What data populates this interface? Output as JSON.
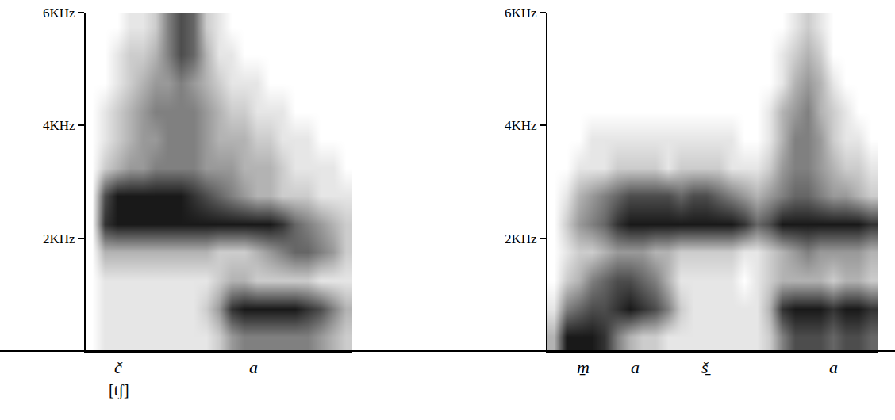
{
  "chart_data": [
    {
      "type": "heatmap",
      "color": "#000000",
      "tick_labels": "y",
      "ylim": [
        0,
        6
      ],
      "yticks": [
        {
          "value": 2,
          "label": "2KHz"
        },
        {
          "value": 4,
          "label": "4KHz"
        },
        {
          "value": 6,
          "label": "6KHz"
        }
      ],
      "xlim": [
        0,
        21
      ],
      "zlim": [
        0,
        1
      ],
      "x": [
        0.5,
        1.5,
        2.5,
        3.5,
        4.5,
        5.5,
        6.5,
        7.5,
        8.5,
        9.5,
        10.5,
        11.5,
        12.5,
        13.5,
        14.5,
        15.5,
        16.5,
        17.5,
        18.5,
        19.5,
        20.5
      ],
      "y": [
        0.25,
        0.75,
        1.25,
        1.75,
        2.25,
        2.75,
        3.25,
        3.75,
        4.25,
        4.75,
        5.25,
        5.75
      ],
      "z": [
        [
          0,
          0.1,
          0.1,
          0.1,
          0.1,
          0.1,
          0.1,
          0.1,
          0.1,
          0.1,
          0.2,
          0.4,
          0.5,
          0.5,
          0.5,
          0.5,
          0.5,
          0.5,
          0.4,
          0.3,
          0.2
        ],
        [
          0,
          0.1,
          0.1,
          0.1,
          0.1,
          0.1,
          0.1,
          0.1,
          0.1,
          0.2,
          0.4,
          0.8,
          0.9,
          0.9,
          0.9,
          0.9,
          0.9,
          0.8,
          0.7,
          0.5,
          0.3
        ],
        [
          0,
          0.1,
          0.1,
          0.1,
          0.1,
          0.1,
          0.1,
          0.1,
          0.1,
          0.1,
          0.2,
          0.3,
          0.3,
          0.2,
          0.2,
          0.2,
          0.2,
          0.2,
          0.1,
          0.1,
          0.1
        ],
        [
          0,
          0.3,
          0.3,
          0.3,
          0.3,
          0.3,
          0.3,
          0.3,
          0.3,
          0.3,
          0.2,
          0.2,
          0.2,
          0.3,
          0.4,
          0.5,
          0.6,
          0.6,
          0.5,
          0.4,
          0.2
        ],
        [
          0,
          0.8,
          0.9,
          0.9,
          0.9,
          0.9,
          0.9,
          0.9,
          0.9,
          0.9,
          0.9,
          0.9,
          0.9,
          0.9,
          0.9,
          0.8,
          0.6,
          0.5,
          0.4,
          0.3,
          0.2
        ],
        [
          0,
          0.7,
          0.9,
          0.9,
          0.9,
          0.9,
          0.9,
          0.9,
          0.8,
          0.7,
          0.6,
          0.5,
          0.4,
          0.3,
          0.3,
          0.2,
          0.2,
          0.2,
          0.1,
          0.1,
          0.1
        ],
        [
          0,
          0.2,
          0.3,
          0.4,
          0.4,
          0.5,
          0.5,
          0.5,
          0.5,
          0.4,
          0.4,
          0.4,
          0.3,
          0.3,
          0.3,
          0.2,
          0.1,
          0.1,
          0.1,
          0.1,
          0
        ],
        [
          0,
          0.1,
          0.2,
          0.3,
          0.4,
          0.4,
          0.5,
          0.5,
          0.5,
          0.4,
          0.3,
          0.3,
          0.3,
          0.2,
          0.2,
          0.1,
          0.1,
          0.1,
          0,
          0,
          0
        ],
        [
          0,
          0.1,
          0.2,
          0.3,
          0.4,
          0.5,
          0.5,
          0.5,
          0.5,
          0.4,
          0.3,
          0.2,
          0.2,
          0.1,
          0.1,
          0.1,
          0,
          0,
          0,
          0,
          0
        ],
        [
          0,
          0,
          0.1,
          0.2,
          0.3,
          0.4,
          0.4,
          0.5,
          0.4,
          0.3,
          0.2,
          0.1,
          0.1,
          0.1,
          0,
          0,
          0,
          0,
          0,
          0,
          0
        ],
        [
          0,
          0,
          0.1,
          0.2,
          0.2,
          0.3,
          0.5,
          0.7,
          0.6,
          0.3,
          0.1,
          0.1,
          0,
          0,
          0,
          0,
          0,
          0,
          0,
          0,
          0
        ],
        [
          0,
          0,
          0,
          0.1,
          0.1,
          0.2,
          0.5,
          0.7,
          0.6,
          0.2,
          0.1,
          0,
          0,
          0,
          0,
          0,
          0,
          0,
          0,
          0,
          0
        ]
      ],
      "segments": [
        {
          "label": "č",
          "x": 2.6,
          "phonetic": "[tʃ]"
        },
        {
          "label": "a",
          "x": 13.2
        }
      ]
    },
    {
      "type": "heatmap",
      "color": "#000000",
      "tick_labels": "y",
      "ylim": [
        0,
        6
      ],
      "yticks": [
        {
          "value": 2,
          "label": "2KHz"
        },
        {
          "value": 4,
          "label": "4KHz"
        },
        {
          "value": 6,
          "label": "6KHz"
        }
      ],
      "xlim": [
        0,
        26
      ],
      "zlim": [
        0,
        1
      ],
      "x": [
        0.5,
        1.5,
        2.5,
        3.5,
        4.5,
        5.5,
        6.5,
        7.5,
        8.5,
        9.5,
        10.5,
        11.5,
        12.5,
        13.5,
        14.5,
        15.5,
        16.5,
        17.5,
        18.5,
        19.5,
        20.5,
        21.5,
        22.5,
        23.5,
        24.5,
        25.5
      ],
      "y": [
        0.25,
        0.75,
        1.25,
        1.75,
        2.25,
        2.75,
        3.25,
        3.75,
        4.25,
        4.75,
        5.25,
        5.75
      ],
      "z": [
        [
          0.3,
          0.9,
          0.9,
          0.9,
          0.8,
          0.5,
          0.3,
          0.2,
          0.2,
          0.1,
          0.1,
          0.1,
          0.1,
          0.1,
          0.1,
          0.1,
          0.1,
          0.2,
          0.5,
          0.7,
          0.7,
          0.7,
          0.6,
          0.7,
          0.7,
          0.6
        ],
        [
          0.1,
          0.5,
          0.6,
          0.7,
          0.7,
          0.8,
          0.9,
          0.8,
          0.7,
          0.5,
          0.2,
          0.1,
          0.1,
          0.1,
          0.1,
          0.1,
          0.1,
          0.3,
          0.8,
          0.9,
          0.9,
          0.9,
          0.8,
          0.9,
          0.9,
          0.8
        ],
        [
          0,
          0.2,
          0.3,
          0.5,
          0.6,
          0.7,
          0.7,
          0.6,
          0.5,
          0.3,
          0.1,
          0.1,
          0.1,
          0.1,
          0.1,
          0,
          0.1,
          0.2,
          0.3,
          0.3,
          0.3,
          0.3,
          0.2,
          0.3,
          0.3,
          0.2
        ],
        [
          0,
          0.1,
          0.2,
          0.2,
          0.3,
          0.4,
          0.4,
          0.4,
          0.3,
          0.3,
          0.2,
          0.2,
          0.2,
          0.2,
          0.2,
          0.1,
          0.1,
          0.2,
          0.3,
          0.4,
          0.5,
          0.4,
          0.4,
          0.4,
          0.4,
          0.3
        ],
        [
          0,
          0.2,
          0.4,
          0.5,
          0.6,
          0.8,
          0.9,
          0.9,
          0.9,
          0.9,
          0.9,
          0.9,
          0.9,
          0.9,
          0.9,
          0.8,
          0.6,
          0.7,
          0.9,
          0.9,
          0.9,
          0.9,
          0.9,
          0.9,
          0.9,
          0.8
        ],
        [
          0,
          0.1,
          0.3,
          0.4,
          0.5,
          0.6,
          0.7,
          0.7,
          0.7,
          0.7,
          0.6,
          0.7,
          0.7,
          0.6,
          0.5,
          0.4,
          0.3,
          0.4,
          0.5,
          0.6,
          0.6,
          0.5,
          0.4,
          0.4,
          0.3,
          0.2
        ],
        [
          0,
          0,
          0.1,
          0.1,
          0.1,
          0.2,
          0.2,
          0.2,
          0.2,
          0.1,
          0.2,
          0.2,
          0.2,
          0.2,
          0.1,
          0.1,
          0.1,
          0.2,
          0.4,
          0.5,
          0.5,
          0.4,
          0.3,
          0.2,
          0.2,
          0.1
        ],
        [
          0,
          0,
          0,
          0.1,
          0.1,
          0.1,
          0.1,
          0.1,
          0.1,
          0.1,
          0.1,
          0.1,
          0.1,
          0.1,
          0.1,
          0,
          0,
          0.1,
          0.3,
          0.5,
          0.5,
          0.4,
          0.2,
          0.1,
          0.1,
          0
        ],
        [
          0,
          0,
          0,
          0,
          0,
          0,
          0,
          0,
          0,
          0,
          0,
          0,
          0,
          0,
          0,
          0,
          0,
          0.1,
          0.3,
          0.4,
          0.5,
          0.3,
          0.2,
          0.1,
          0,
          0
        ],
        [
          0,
          0,
          0,
          0,
          0,
          0,
          0,
          0,
          0,
          0,
          0,
          0,
          0,
          0,
          0,
          0,
          0,
          0,
          0.1,
          0.3,
          0.4,
          0.3,
          0.1,
          0,
          0,
          0
        ],
        [
          0,
          0,
          0,
          0,
          0,
          0,
          0,
          0,
          0,
          0,
          0,
          0,
          0,
          0,
          0,
          0,
          0,
          0,
          0.1,
          0.2,
          0.3,
          0.2,
          0,
          0,
          0,
          0
        ],
        [
          0,
          0,
          0,
          0,
          0,
          0,
          0,
          0,
          0,
          0,
          0,
          0,
          0,
          0,
          0,
          0,
          0,
          0,
          0,
          0.1,
          0.2,
          0.1,
          0,
          0,
          0,
          0
        ]
      ],
      "segments": [
        {
          "label": "m̱",
          "x": 2.8
        },
        {
          "label": "a",
          "x": 6.9
        },
        {
          "label": "š̱",
          "x": 12.5
        },
        {
          "label": "a",
          "x": 22.5
        }
      ]
    }
  ]
}
